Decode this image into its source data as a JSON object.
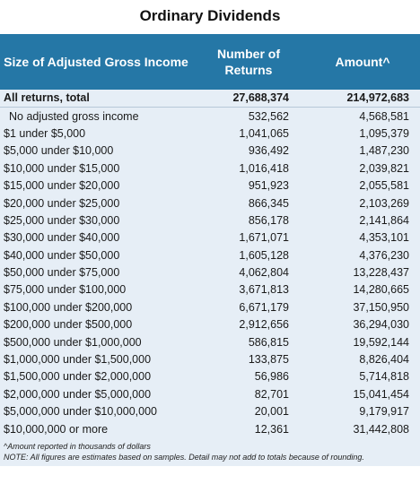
{
  "title": "Ordinary Dividends",
  "columns": [
    "Size of Adjusted Gross Income",
    "Number of Returns",
    "Amount^"
  ],
  "total": {
    "label": "All returns, total",
    "returns": "27,688,374",
    "amount": "214,972,683"
  },
  "rows": [
    {
      "label": "No adjusted gross income",
      "returns": "532,562",
      "amount": "4,568,581"
    },
    {
      "label": "$1 under $5,000",
      "returns": "1,041,065",
      "amount": "1,095,379"
    },
    {
      "label": "$5,000 under $10,000",
      "returns": "936,492",
      "amount": "1,487,230"
    },
    {
      "label": "$10,000 under $15,000",
      "returns": "1,016,418",
      "amount": "2,039,821"
    },
    {
      "label": "$15,000 under $20,000",
      "returns": "951,923",
      "amount": "2,055,581"
    },
    {
      "label": "$20,000 under $25,000",
      "returns": "866,345",
      "amount": "2,103,269"
    },
    {
      "label": "$25,000 under $30,000",
      "returns": "856,178",
      "amount": "2,141,864"
    },
    {
      "label": "$30,000 under $40,000",
      "returns": "1,671,071",
      "amount": "4,353,101"
    },
    {
      "label": "$40,000 under $50,000",
      "returns": "1,605,128",
      "amount": "4,376,230"
    },
    {
      "label": "$50,000 under $75,000",
      "returns": "4,062,804",
      "amount": "13,228,437"
    },
    {
      "label": "$75,000 under $100,000",
      "returns": "3,671,813",
      "amount": "14,280,665"
    },
    {
      "label": "$100,000 under $200,000",
      "returns": "6,671,179",
      "amount": "37,150,950"
    },
    {
      "label": "$200,000 under $500,000",
      "returns": "2,912,656",
      "amount": "36,294,030"
    },
    {
      "label": "$500,000 under $1,000,000",
      "returns": "586,815",
      "amount": "19,592,144"
    },
    {
      "label": "$1,000,000 under $1,500,000",
      "returns": "133,875",
      "amount": "8,826,404"
    },
    {
      "label": "$1,500,000 under $2,000,000",
      "returns": "56,986",
      "amount": "5,714,818"
    },
    {
      "label": "$2,000,000 under $5,000,000",
      "returns": "82,701",
      "amount": "15,041,454"
    },
    {
      "label": "$5,000,000 under $10,000,000",
      "returns": "20,001",
      "amount": "9,179,917"
    },
    {
      "label": "$10,000,000 or more",
      "returns": "12,361",
      "amount": "31,442,808"
    }
  ],
  "footnotes": [
    "^Amount reported in thousands of dollars",
    "NOTE: All figures are estimates based on samples. Detail may not add to totals because of rounding."
  ],
  "colors": {
    "header_bg": "#2577a6",
    "row_bg": "#e6eef6"
  }
}
